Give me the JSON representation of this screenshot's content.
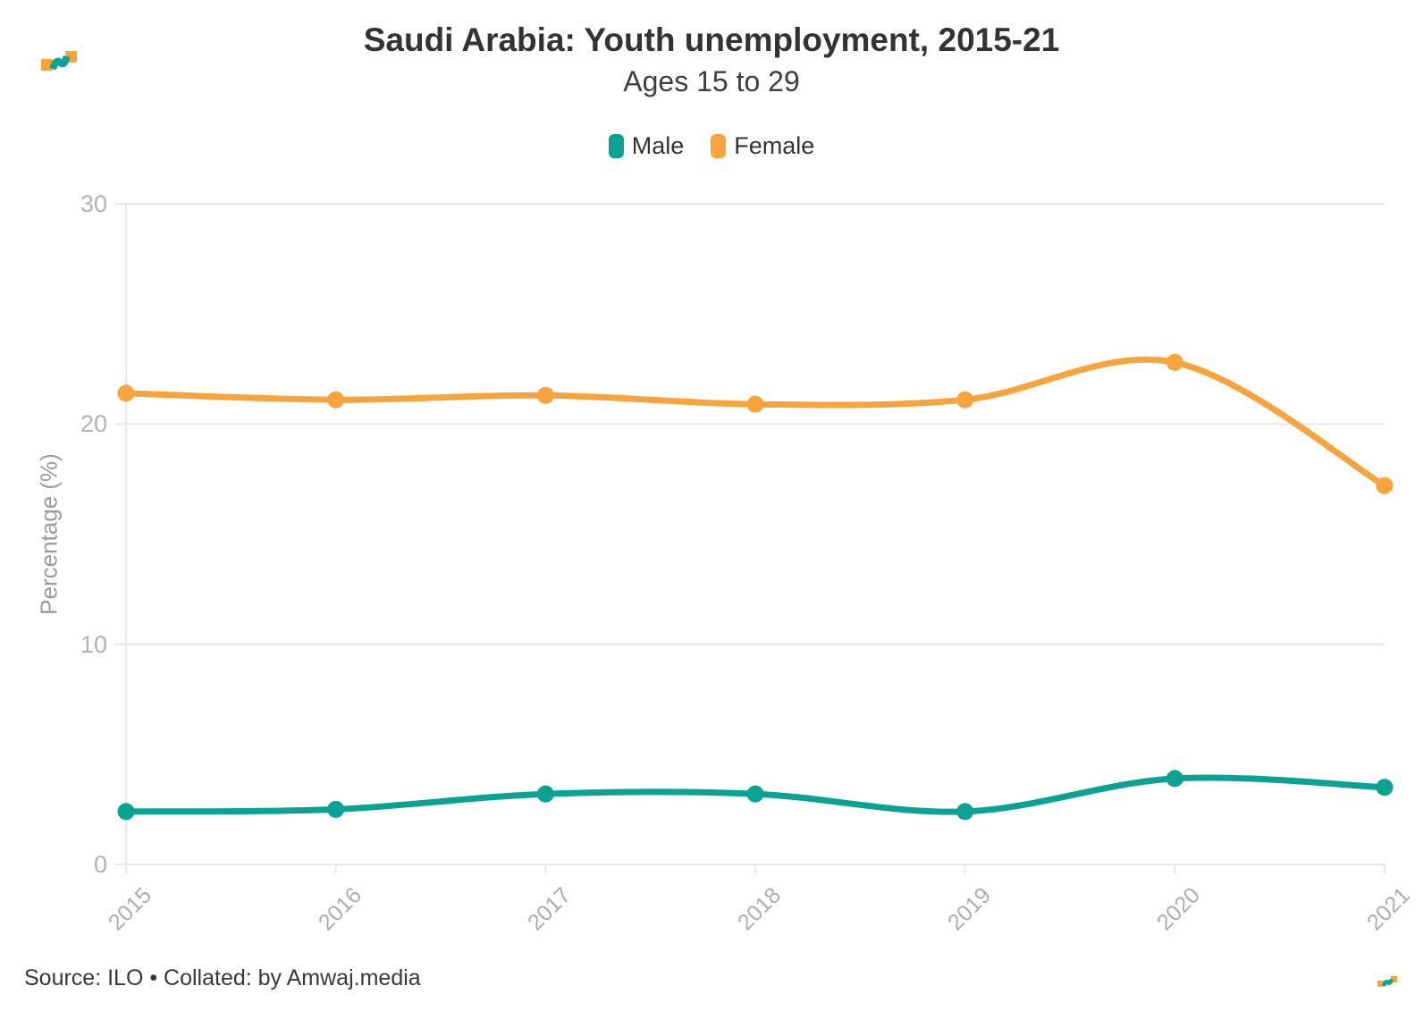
{
  "header": {
    "title": "Saudi Arabia: Youth unemployment, 2015-21",
    "subtitle": "Ages 15 to 29"
  },
  "chart_data": {
    "type": "line",
    "title": "Saudi Arabia: Youth unemployment, 2015-21",
    "subtitle": "Ages 15 to 29",
    "x": [
      2015,
      2016,
      2017,
      2018,
      2019,
      2020,
      2021
    ],
    "series": [
      {
        "name": "Male",
        "color": "#0aa293",
        "values": [
          2.4,
          2.5,
          3.2,
          3.2,
          2.4,
          3.9,
          3.5
        ]
      },
      {
        "name": "Female",
        "color": "#f8a43c",
        "values": [
          21.4,
          21.1,
          21.3,
          20.9,
          21.1,
          22.8,
          17.2
        ]
      }
    ],
    "xlabel": "",
    "ylabel": "Percentage (%)",
    "ylim": [
      0,
      30
    ],
    "yticks": [
      0,
      10,
      20,
      30
    ],
    "grid": true,
    "legend_position": "top",
    "point_markers": true
  },
  "footer": {
    "source": "Source: ILO • Collated: by Amwaj.media"
  },
  "branding": {
    "logo_teal": "#0aa293",
    "logo_orange": "#f8a43c"
  },
  "style_colors": {
    "gridline": "#e8e8e8",
    "tick_label": "#b3b3b3",
    "text": "#333333"
  }
}
